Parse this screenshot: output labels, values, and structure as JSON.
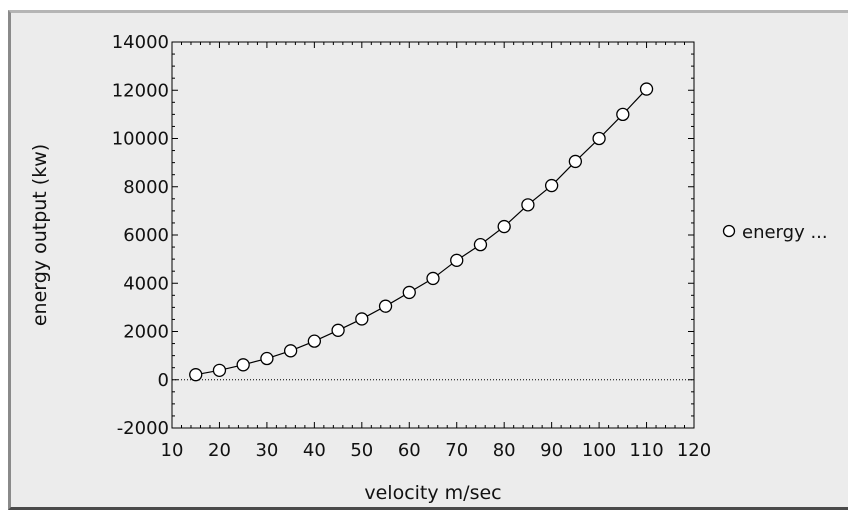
{
  "chart_data": {
    "type": "line",
    "title": "",
    "xlabel": "velocity m/sec",
    "ylabel": "energy output (kw)",
    "xlim": [
      10,
      120
    ],
    "ylim": [
      -2000,
      14000
    ],
    "xticks": [
      "10",
      "20",
      "30",
      "40",
      "50",
      "60",
      "70",
      "80",
      "90",
      "100",
      "110",
      "120"
    ],
    "yticks": [
      "-2000",
      "0",
      "2000",
      "4000",
      "6000",
      "8000",
      "10000",
      "12000",
      "14000"
    ],
    "grid": false,
    "zero_line": "dotted",
    "legend_position": "right",
    "series": [
      {
        "name": "energy ...",
        "marker": "open-circle",
        "color": "#000000",
        "x": [
          15,
          20,
          25,
          30,
          35,
          40,
          45,
          50,
          55,
          60,
          65,
          70,
          75,
          80,
          85,
          90,
          95,
          100,
          105,
          110
        ],
        "y": [
          210,
          390,
          620,
          880,
          1200,
          1600,
          2050,
          2520,
          3050,
          3620,
          4200,
          4950,
          5600,
          6350,
          7250,
          8050,
          9050,
          10000,
          11000,
          12050
        ]
      }
    ]
  }
}
